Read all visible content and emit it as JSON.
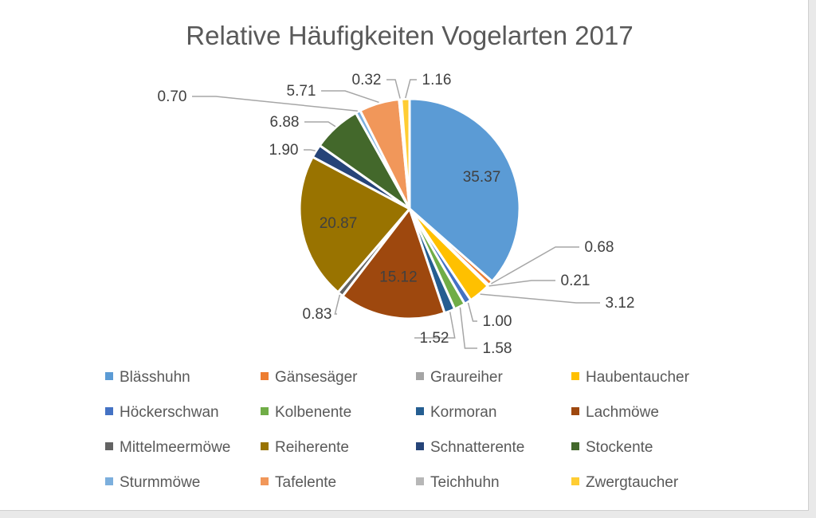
{
  "chart_data": {
    "type": "pie",
    "title": "Relative Häufigkeiten Vogelarten 2017",
    "legend_position": "bottom",
    "slices": [
      {
        "name": "Blässhuhn",
        "value": 35.37,
        "label": "35.37",
        "color": "#5B9BD5"
      },
      {
        "name": "Gänsesäger",
        "value": 0.68,
        "label": "0.68",
        "color": "#ED7D31"
      },
      {
        "name": "Graureiher",
        "value": 0.21,
        "label": "0.21",
        "color": "#A5A5A5"
      },
      {
        "name": "Haubentaucher",
        "value": 3.12,
        "label": "3.12",
        "color": "#FFC000"
      },
      {
        "name": "Höckerschwan",
        "value": 1.0,
        "label": "1.00",
        "color": "#4472C4"
      },
      {
        "name": "Kolbenente",
        "value": 1.58,
        "label": "1.58",
        "color": "#70AD47"
      },
      {
        "name": "Kormoran",
        "value": 1.52,
        "label": "1.52",
        "color": "#255E91"
      },
      {
        "name": "Lachmöwe",
        "value": 15.12,
        "label": "15.12",
        "color": "#9E480E"
      },
      {
        "name": "Mittelmeermöwe",
        "value": 0.83,
        "label": "0.83",
        "color": "#636363"
      },
      {
        "name": "Reiherente",
        "value": 20.87,
        "label": "20.87",
        "color": "#997300"
      },
      {
        "name": "Schnatterente",
        "value": 1.9,
        "label": "1.90",
        "color": "#264478"
      },
      {
        "name": "Stockente",
        "value": 6.88,
        "label": "6.88",
        "color": "#43682B"
      },
      {
        "name": "Sturmmöwe",
        "value": 0.7,
        "label": "0.70",
        "color": "#7CAFDD"
      },
      {
        "name": "Tafelente",
        "value": 5.71,
        "label": "5.71",
        "color": "#F1975A"
      },
      {
        "name": "Teichhuhn",
        "value": 0.32,
        "label": "0.32",
        "color": "#B7B7B7"
      },
      {
        "name": "Zwergtaucher",
        "value": 1.16,
        "label": "1.16",
        "color": "#FFCD33"
      }
    ]
  }
}
